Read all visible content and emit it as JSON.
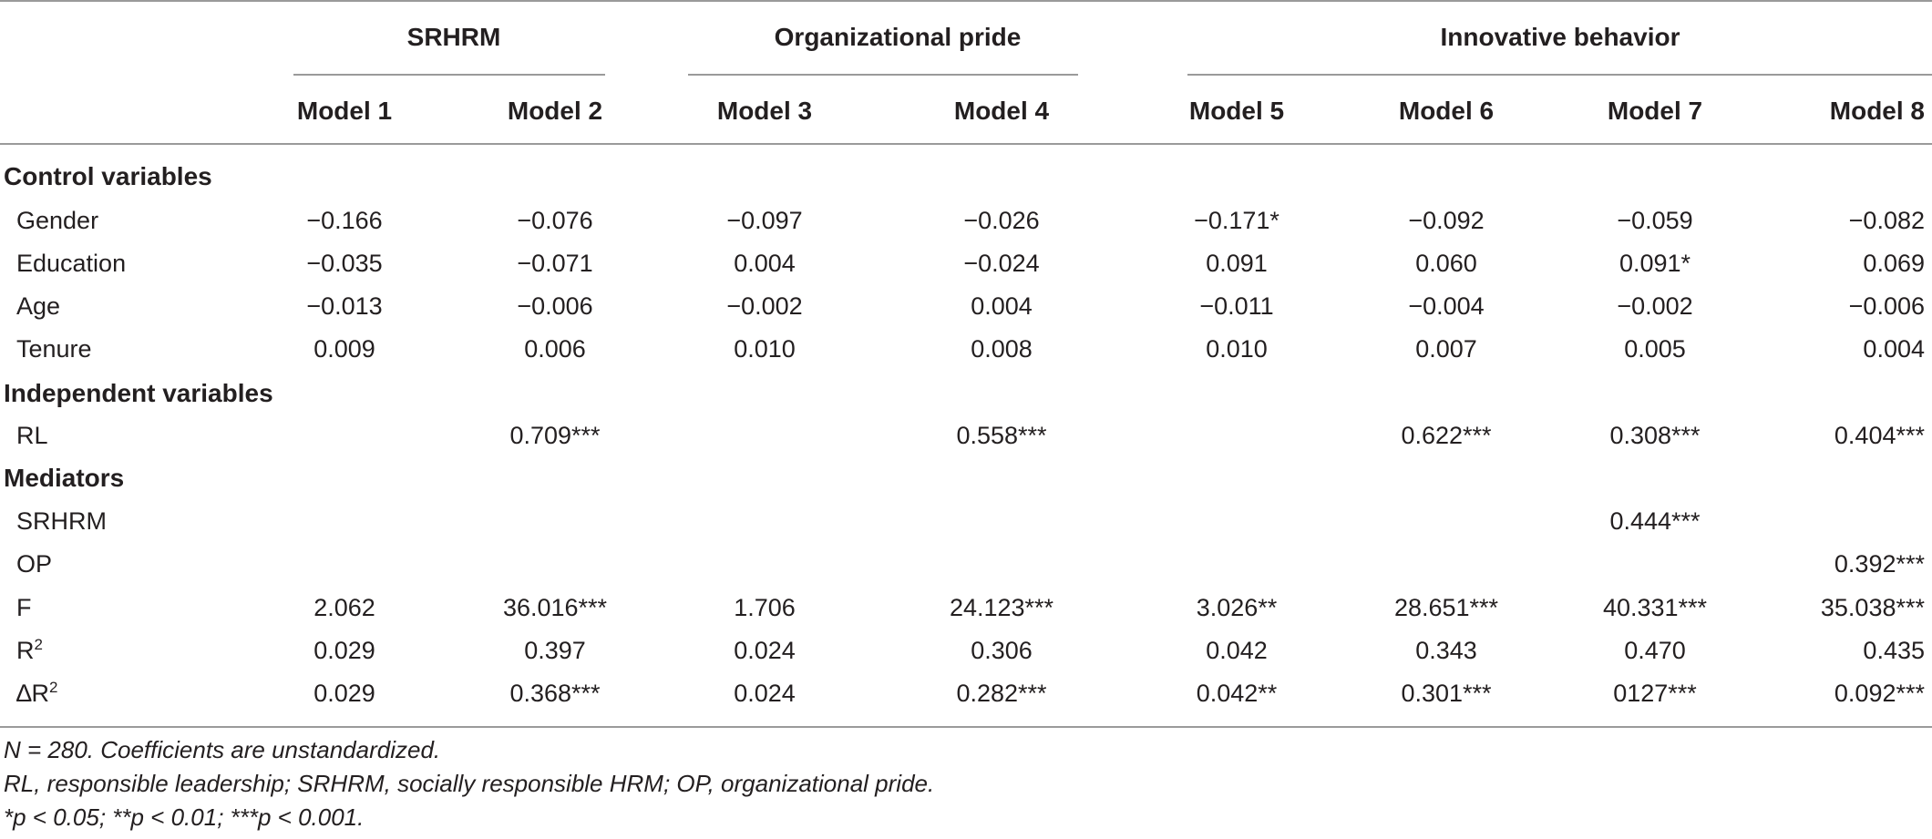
{
  "groups": [
    "SRHRM",
    "Organizational pride",
    "Innovative behavior"
  ],
  "models": [
    "Model 1",
    "Model 2",
    "Model 3",
    "Model 4",
    "Model 5",
    "Model 6",
    "Model 7",
    "Model 8"
  ],
  "sections": {
    "control": "Control variables",
    "independent": "Independent variables",
    "mediators": "Mediators"
  },
  "rows": {
    "gender": {
      "label": "Gender",
      "values": [
        "−0.166",
        "−0.076",
        "−0.097",
        "−0.026",
        "−0.171*",
        "−0.092",
        "−0.059",
        "−0.082"
      ]
    },
    "education": {
      "label": "Education",
      "values": [
        "−0.035",
        "−0.071",
        "0.004",
        "−0.024",
        "0.091",
        "0.060",
        "0.091*",
        "0.069"
      ]
    },
    "age": {
      "label": "Age",
      "values": [
        "−0.013",
        "−0.006",
        "−0.002",
        "0.004",
        "−0.011",
        "−0.004",
        "−0.002",
        "−0.006"
      ]
    },
    "tenure": {
      "label": "Tenure",
      "values": [
        "0.009",
        "0.006",
        "0.010",
        "0.008",
        "0.010",
        "0.007",
        "0.005",
        "0.004"
      ]
    },
    "rl": {
      "label": "RL",
      "values": [
        "",
        "0.709***",
        "",
        "0.558***",
        "",
        "0.622***",
        "0.308***",
        "0.404***"
      ]
    },
    "srhrm": {
      "label": "SRHRM",
      "values": [
        "",
        "",
        "",
        "",
        "",
        "",
        "0.444***",
        ""
      ]
    },
    "op": {
      "label": "OP",
      "values": [
        "",
        "",
        "",
        "",
        "",
        "",
        "",
        "0.392***"
      ]
    },
    "f": {
      "label": "F",
      "values": [
        "2.062",
        "36.016***",
        "1.706",
        "24.123***",
        "3.026**",
        "28.651***",
        "40.331***",
        "35.038***"
      ]
    },
    "r2": {
      "label": "R",
      "sup": "2",
      "values": [
        "0.029",
        "0.397",
        "0.024",
        "0.306",
        "0.042",
        "0.343",
        "0.470",
        "0.435"
      ]
    },
    "dr2": {
      "label": "∆R",
      "sup": "2",
      "values": [
        "0.029",
        "0.368***",
        "0.024",
        "0.282***",
        "0.042**",
        "0.301***",
        "0127***",
        "0.092***"
      ]
    }
  },
  "notes": [
    "N = 280. Coefficients are unstandardized.",
    "RL, responsible leadership; SRHRM, socially responsible HRM; OP, organizational pride.",
    "*p < 0.05; **p < 0.01; ***p < 0.001."
  ]
}
